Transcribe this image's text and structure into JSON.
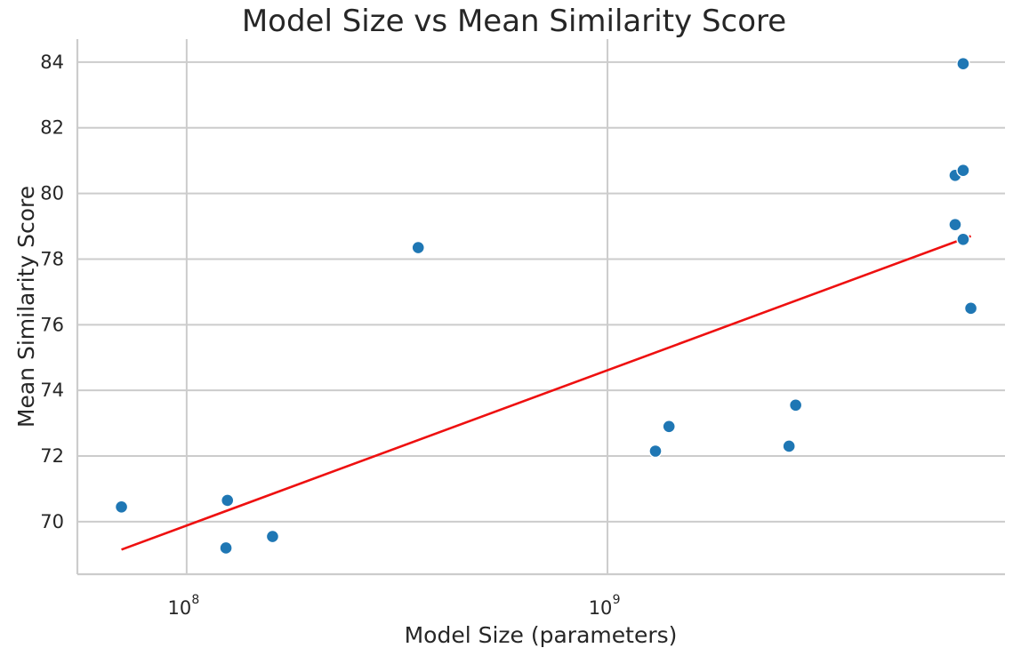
{
  "chart_data": {
    "type": "scatter",
    "title": "Model Size vs Mean Similarity Score",
    "xlabel": "Model Size (parameters)",
    "ylabel": "Mean Similarity Score",
    "xscale": "log",
    "xlim": [
      55000000,
      8800000000
    ],
    "ylim": [
      68.4,
      84.7
    ],
    "x_ticks": [
      {
        "value": 100000000,
        "base": "10",
        "exponent": "8"
      },
      {
        "value": 1000000000,
        "base": "10",
        "exponent": "9"
      }
    ],
    "y_ticks": [
      70,
      72,
      74,
      76,
      78,
      80,
      82,
      84
    ],
    "grid": true,
    "point_color": "#1f77b4",
    "trend_color": "#ee1010",
    "points": [
      {
        "x": 70000000,
        "y": 70.45
      },
      {
        "x": 125000000,
        "y": 70.65
      },
      {
        "x": 124000000,
        "y": 69.2
      },
      {
        "x": 160000000,
        "y": 69.55
      },
      {
        "x": 355000000,
        "y": 78.35
      },
      {
        "x": 1300000000,
        "y": 72.15
      },
      {
        "x": 1400000000,
        "y": 72.9
      },
      {
        "x": 2700000000,
        "y": 72.3
      },
      {
        "x": 2800000000,
        "y": 73.55
      },
      {
        "x": 6700000000,
        "y": 80.55
      },
      {
        "x": 7000000000,
        "y": 80.7
      },
      {
        "x": 6700000000,
        "y": 79.05
      },
      {
        "x": 7000000000,
        "y": 78.6
      },
      {
        "x": 7000000000,
        "y": 83.95
      },
      {
        "x": 7300000000,
        "y": 76.5
      }
    ],
    "trendline": [
      {
        "x": 70000000,
        "y": 69.15
      },
      {
        "x": 7300000000,
        "y": 78.7
      }
    ]
  }
}
